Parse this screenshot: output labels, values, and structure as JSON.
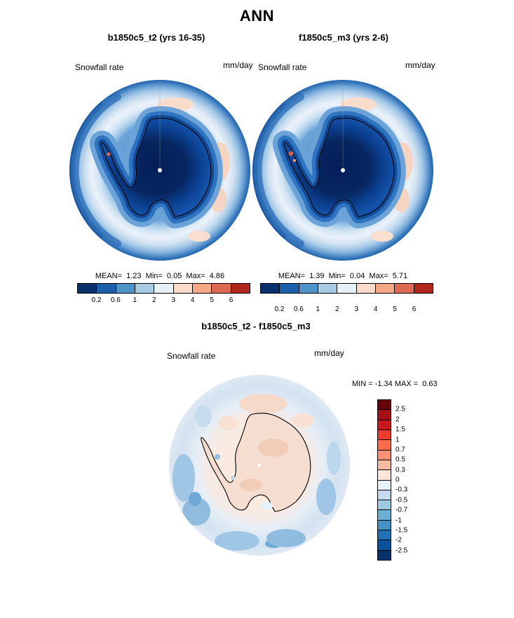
{
  "page_title": "ANN",
  "panels": {
    "left": {
      "title": "b1850c5_t2 (yrs 16-35)",
      "var_label": "Snowfall rate",
      "units": "mm/day",
      "stats": "MEAN=  1.23  Min=  0.05  Max=  4.86"
    },
    "right": {
      "title": "f1850c5_m3 (yrs 2-6)",
      "var_label": "Snowfall rate",
      "units": "mm/day",
      "stats": "MEAN=  1.39  Min=  0.04  Max=  5.71"
    },
    "diff": {
      "title": "b1850c5_t2 - f1850c5_m3",
      "var_label": "Snowfall rate",
      "units": "mm/day",
      "minmax": "MIN = -1.34 MAX =  0.63"
    }
  },
  "colorbar_snowfall": {
    "tick_labels": [
      "0.2",
      "0.6",
      "1",
      "2",
      "3",
      "4",
      "5",
      "6"
    ],
    "colors": [
      "#08306b",
      "#1c60ab",
      "#4e94c8",
      "#a6cbe3",
      "#e8f0f7",
      "#fbdccb",
      "#f5a886",
      "#dc6951",
      "#b2271d"
    ]
  },
  "colorbar_diff": {
    "tick_labels": [
      "2.5",
      "2",
      "1.5",
      "1",
      "0.7",
      "0.5",
      "0.3",
      "0",
      "-0.3",
      "-0.5",
      "-0.7",
      "-1",
      "-1.5",
      "-2",
      "-2.5"
    ],
    "colors": [
      "#67000d",
      "#a50f15",
      "#cb181d",
      "#ef3b2c",
      "#fb6a4a",
      "#fc9272",
      "#fcbba1",
      "#fee5d9",
      "#e7f1fa",
      "#c6dbef",
      "#9ecae1",
      "#6baed6",
      "#4292c6",
      "#2171b5",
      "#08519c",
      "#08306b"
    ]
  },
  "chart_data": [
    {
      "type": "heatmap",
      "subtype": "south-polar-stereographic-map",
      "season": "ANN",
      "title": "b1850c5_t2 (yrs 16-35)",
      "variable": "Snowfall rate",
      "units": "mm/day",
      "levels": [
        0.2,
        0.6,
        1,
        2,
        3,
        4,
        5,
        6
      ],
      "stats": {
        "mean": 1.23,
        "min": 0.05,
        "max": 4.86
      },
      "legend_position": "bottom-horizontal"
    },
    {
      "type": "heatmap",
      "subtype": "south-polar-stereographic-map",
      "season": "ANN",
      "title": "f1850c5_m3 (yrs 2-6)",
      "variable": "Snowfall rate",
      "units": "mm/day",
      "levels": [
        0.2,
        0.6,
        1,
        2,
        3,
        4,
        5,
        6
      ],
      "stats": {
        "mean": 1.39,
        "min": 0.04,
        "max": 5.71
      },
      "legend_position": "bottom-horizontal"
    },
    {
      "type": "heatmap",
      "subtype": "south-polar-stereographic-map",
      "season": "ANN",
      "title": "b1850c5_t2 - f1850c5_m3",
      "variable": "Snowfall rate difference",
      "units": "mm/day",
      "levels": [
        -2.5,
        -2,
        -1.5,
        -1,
        -0.7,
        -0.5,
        -0.3,
        0,
        0.3,
        0.5,
        0.7,
        1,
        1.5,
        2,
        2.5
      ],
      "stats": {
        "min": -1.34,
        "max": 0.63
      },
      "legend_position": "right-vertical"
    }
  ]
}
